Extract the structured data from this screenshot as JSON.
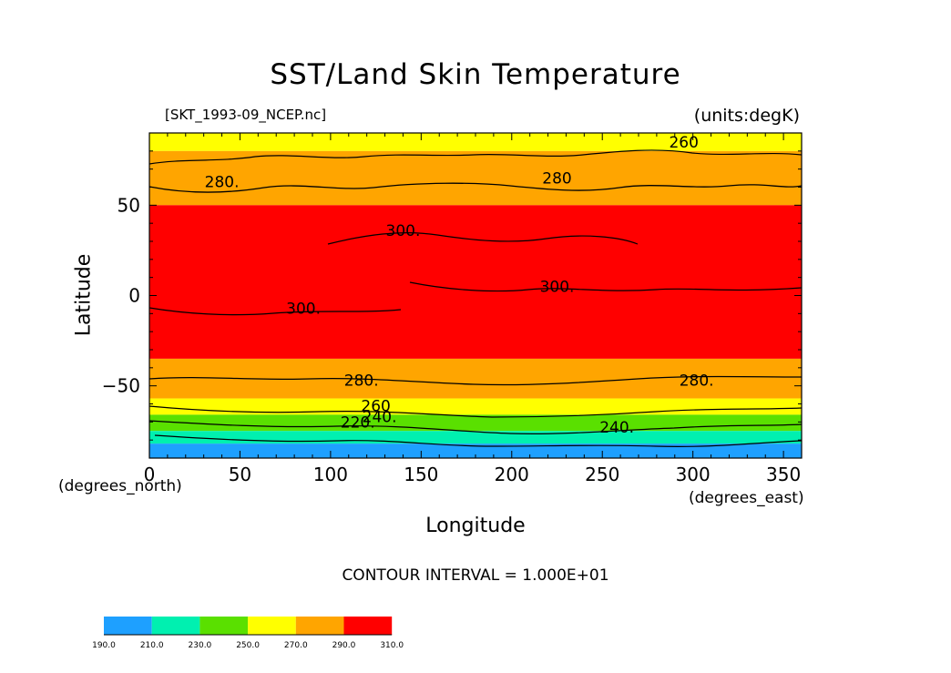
{
  "chart_data": {
    "type": "heatmap",
    "title": "SST/Land Skin Temperature",
    "subtitle_left": "[SKT_1993-09_NCEP.nc]",
    "subtitle_right": "(units:degK)",
    "xlabel": "Longitude",
    "ylabel": "Latitude",
    "x_unit_label": "(degrees_east)",
    "y_unit_label": "(degrees_north)",
    "xlim": [
      0,
      360
    ],
    "ylim": [
      -90,
      90
    ],
    "x_ticks": [
      0,
      50,
      100,
      150,
      200,
      250,
      300,
      350
    ],
    "y_ticks": [
      50,
      0,
      -50
    ],
    "contour_note": "CONTOUR INTERVAL = 1.000E+01",
    "contour_interval": 10,
    "color_levels": [
      {
        "min": 190,
        "max": 210,
        "color": "#1ea0ff"
      },
      {
        "min": 210,
        "max": 230,
        "color": "#00f0b0"
      },
      {
        "min": 230,
        "max": 250,
        "color": "#5ae000"
      },
      {
        "min": 250,
        "max": 270,
        "color": "#ffff00"
      },
      {
        "min": 270,
        "max": 290,
        "color": "#ffa500"
      },
      {
        "min": 290,
        "max": 310,
        "color": "#ff0000"
      }
    ],
    "colorbar_labels": [
      "190.0",
      "210.0",
      "230.0",
      "250.0",
      "270.0",
      "290.0",
      "310.0"
    ],
    "latitude_bands": [
      {
        "lat_top": 90,
        "lat_bottom": 80,
        "value": "250-270"
      },
      {
        "lat_top": 80,
        "lat_bottom": 50,
        "value": "270-290"
      },
      {
        "lat_top": 50,
        "lat_bottom": -35,
        "value": "290-310"
      },
      {
        "lat_top": -35,
        "lat_bottom": -57,
        "value": "270-290"
      },
      {
        "lat_top": -57,
        "lat_bottom": -66,
        "value": "250-270"
      },
      {
        "lat_top": -66,
        "lat_bottom": -75,
        "value": "230-250"
      },
      {
        "lat_top": -75,
        "lat_bottom": -82,
        "value": "210-230"
      },
      {
        "lat_top": -82,
        "lat_bottom": -90,
        "value": "190-210"
      }
    ],
    "contour_labels": [
      {
        "text": "260",
        "lon": 295,
        "lat": 82
      },
      {
        "text": "280.",
        "lon": 40,
        "lat": 60
      },
      {
        "text": "280",
        "lon": 225,
        "lat": 62
      },
      {
        "text": "300.",
        "lon": 140,
        "lat": 33
      },
      {
        "text": "300.",
        "lon": 225,
        "lat": 2
      },
      {
        "text": "300.",
        "lon": 85,
        "lat": -10
      },
      {
        "text": "280.",
        "lon": 117,
        "lat": -50
      },
      {
        "text": "280.",
        "lon": 302,
        "lat": -50
      },
      {
        "text": "260",
        "lon": 125,
        "lat": -64
      },
      {
        "text": "240.",
        "lon": 127,
        "lat": -70
      },
      {
        "text": "220.",
        "lon": 115,
        "lat": -73
      },
      {
        "text": "240.",
        "lon": 258,
        "lat": -76
      }
    ]
  }
}
